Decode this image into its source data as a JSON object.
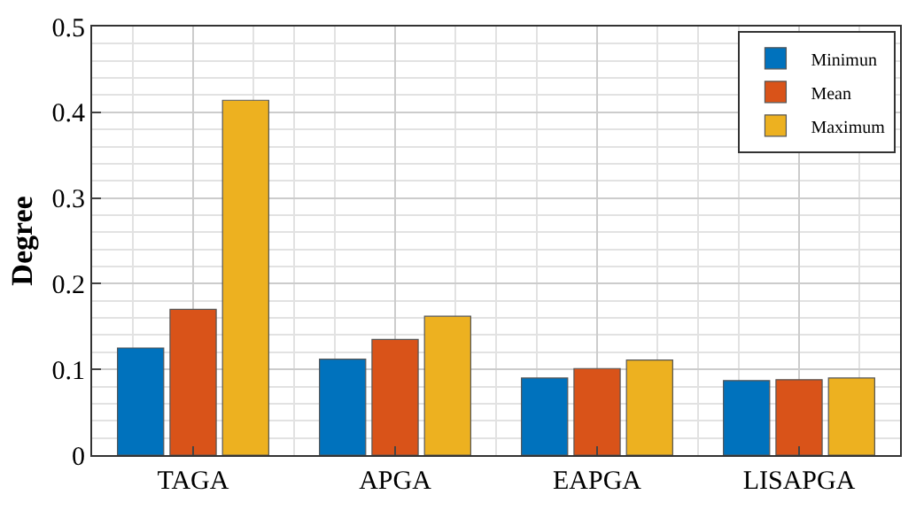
{
  "chart_data": {
    "type": "bar",
    "ylabel": "Degree",
    "categories": [
      "TAGA",
      "APGA",
      "EAPGA",
      "LISAPGA"
    ],
    "series": [
      {
        "name": "Minimun",
        "color": "#0072bd",
        "values": [
          0.125,
          0.112,
          0.09,
          0.087
        ]
      },
      {
        "name": "Mean",
        "color": "#d95319",
        "values": [
          0.17,
          0.135,
          0.101,
          0.088
        ]
      },
      {
        "name": "Maximum",
        "color": "#edb120",
        "values": [
          0.414,
          0.162,
          0.111,
          0.09
        ]
      }
    ],
    "ylim": [
      0,
      0.5
    ],
    "yticks": [
      {
        "value": 0,
        "label": "0"
      },
      {
        "value": 0.1,
        "label": "0.1"
      },
      {
        "value": 0.2,
        "label": "0.2"
      },
      {
        "value": 0.3,
        "label": "0.3"
      },
      {
        "value": 0.4,
        "label": "0.4"
      },
      {
        "value": 0.5,
        "label": "0.5"
      }
    ],
    "grid": true,
    "legend": "top right"
  }
}
